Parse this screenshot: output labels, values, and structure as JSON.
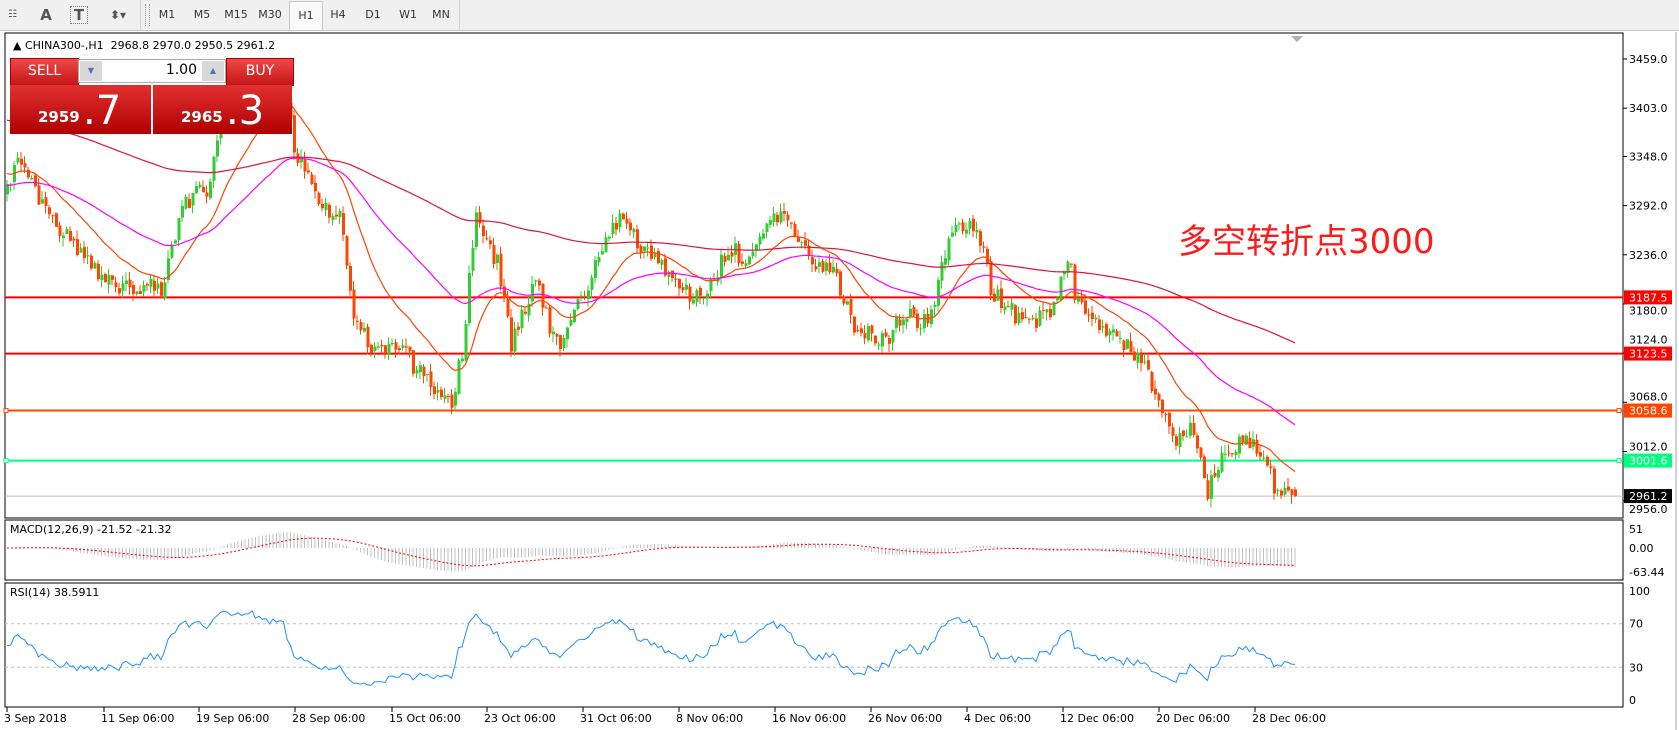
{
  "toolbar": {
    "icons": [
      "grid-f-icon",
      "text-a-icon",
      "text-box-icon",
      "arrows-icon"
    ],
    "timeframes": [
      "M1",
      "M5",
      "M15",
      "M30",
      "H1",
      "H4",
      "D1",
      "W1",
      "MN"
    ],
    "selected_timeframe": "H1"
  },
  "chart": {
    "symbol_line": "CHINA300-,H1  2968.8 2970.0 2950.5 2961.2",
    "trade_panel": {
      "sell_label": "SELL",
      "buy_label": "BUY",
      "lot": "1.00",
      "sell_price_main": "2959",
      "sell_price_frac": ".7",
      "buy_price_main": "2965",
      "buy_price_frac": ".3"
    },
    "annotation": "多空转折点3000",
    "colors": {
      "bull": "#32cd32",
      "bear": "#ff4500",
      "ma_fast": "#ff4500",
      "ma_mid": "#ff00ff",
      "ma_slow": "#dc143c"
    }
  },
  "chart_data": {
    "type": "candlestick",
    "price_axis": {
      "ticks": [
        "3459.0",
        "3403.0",
        "3348.0",
        "3292.0",
        "3236.0",
        "3180.0",
        "3124.0",
        "3068.0",
        "3012.0",
        "2956.0"
      ],
      "range": [
        2948,
        3480
      ]
    },
    "levels": [
      {
        "price": "3187.5",
        "color": "#ff0000"
      },
      {
        "price": "3123.5",
        "color": "#ff0000"
      },
      {
        "price": "3058.6",
        "color": "#ff4500"
      },
      {
        "price": "3001.6",
        "color": "#00ff7f"
      },
      {
        "price": "2961.2",
        "color": "#000000",
        "current": true
      }
    ],
    "date_ticks": [
      {
        "label": "3 Sep 2018",
        "t": "2018-09-03"
      },
      {
        "label": "11 Sep 06:00",
        "t": "2018-09-11"
      },
      {
        "label": "19 Sep 06:00",
        "t": "2018-09-19"
      },
      {
        "label": "28 Sep 06:00",
        "t": "2018-09-28"
      },
      {
        "label": "15 Oct 06:00",
        "t": "2018-10-15"
      },
      {
        "label": "23 Oct 06:00",
        "t": "2018-10-23"
      },
      {
        "label": "31 Oct 06:00",
        "t": "2018-10-31"
      },
      {
        "label": "8 Nov 06:00",
        "t": "2018-11-08"
      },
      {
        "label": "16 Nov 06:00",
        "t": "2018-11-16"
      },
      {
        "label": "26 Nov 06:00",
        "t": "2018-11-26"
      },
      {
        "label": "4 Dec 06:00",
        "t": "2018-12-04"
      },
      {
        "label": "12 Dec 06:00",
        "t": "2018-12-12"
      },
      {
        "label": "20 Dec 06:00",
        "t": "2018-12-20"
      },
      {
        "label": "28 Dec 06:00",
        "t": "2018-12-28"
      }
    ],
    "closes": [
      {
        "t": "2018-09-03",
        "c": 3306
      },
      {
        "t": "2018-09-04",
        "c": 3343
      },
      {
        "t": "2018-09-07",
        "c": 3270
      },
      {
        "t": "2018-09-11",
        "c": 3203
      },
      {
        "t": "2018-09-16",
        "c": 3197
      },
      {
        "t": "2018-09-17T12:00",
        "c": 3294
      },
      {
        "t": "2018-09-20",
        "c": 3313
      },
      {
        "t": "2018-09-21",
        "c": 3392
      },
      {
        "t": "2018-09-24",
        "c": 3428
      },
      {
        "t": "2018-09-27",
        "c": 3441
      },
      {
        "t": "2018-09-28",
        "c": 3355
      },
      {
        "t": "2018-10-02",
        "c": 3294
      },
      {
        "t": "2018-10-06",
        "c": 3282
      },
      {
        "t": "2018-10-08",
        "c": 3172
      },
      {
        "t": "2018-10-11",
        "c": 3136
      },
      {
        "t": "2018-10-16",
        "c": 3123
      },
      {
        "t": "2018-10-20",
        "c": 3062
      },
      {
        "t": "2018-10-21",
        "c": 3136
      },
      {
        "t": "2018-10-22",
        "c": 3282
      },
      {
        "t": "2018-10-24",
        "c": 3221
      },
      {
        "t": "2018-10-25",
        "c": 3136
      },
      {
        "t": "2018-10-27",
        "c": 3209
      },
      {
        "t": "2018-10-29",
        "c": 3123
      },
      {
        "t": "2018-10-30",
        "c": 3160
      },
      {
        "t": "2018-11-01",
        "c": 3221
      },
      {
        "t": "2018-11-03",
        "c": 3282
      },
      {
        "t": "2018-11-05",
        "c": 3245
      },
      {
        "t": "2018-11-08",
        "c": 3197
      },
      {
        "t": "2018-11-10",
        "c": 3184
      },
      {
        "t": "2018-11-12",
        "c": 3245
      },
      {
        "t": "2018-11-14",
        "c": 3227
      },
      {
        "t": "2018-11-16",
        "c": 3282
      },
      {
        "t": "2018-11-17",
        "c": 3282
      },
      {
        "t": "2018-11-20",
        "c": 3221
      },
      {
        "t": "2018-11-22",
        "c": 3221
      },
      {
        "t": "2018-11-24",
        "c": 3160
      },
      {
        "t": "2018-11-27",
        "c": 3136
      },
      {
        "t": "2018-11-29",
        "c": 3172
      },
      {
        "t": "2018-11-30",
        "c": 3148
      },
      {
        "t": "2018-12-01",
        "c": 3172
      },
      {
        "t": "2018-12-03",
        "c": 3276
      },
      {
        "t": "2018-12-05",
        "c": 3258
      },
      {
        "t": "2018-12-06",
        "c": 3197
      },
      {
        "t": "2018-12-09",
        "c": 3154
      },
      {
        "t": "2018-12-11",
        "c": 3172
      },
      {
        "t": "2018-12-12T12:00",
        "c": 3239
      },
      {
        "t": "2018-12-13",
        "c": 3184
      },
      {
        "t": "2018-12-15",
        "c": 3160
      },
      {
        "t": "2018-12-18",
        "c": 3123
      },
      {
        "t": "2018-12-20",
        "c": 3075
      },
      {
        "t": "2018-12-21",
        "c": 3026
      },
      {
        "t": "2018-12-23",
        "c": 3038
      },
      {
        "t": "2018-12-24",
        "c": 2965
      },
      {
        "t": "2018-12-25T12:00",
        "c": 3014
      },
      {
        "t": "2018-12-27",
        "c": 3026
      },
      {
        "t": "2018-12-29",
        "c": 3001
      },
      {
        "t": "2018-12-30",
        "c": 2959
      },
      {
        "t": "2018-12-31T12:00",
        "c": 2961.2
      }
    ],
    "last_bar": {
      "open": "2968.8",
      "high": "2970.0",
      "low": "2950.5",
      "close": "2961.2"
    }
  },
  "macd": {
    "label": "MACD(12,26,9) -21.52 -21.32",
    "ticks": [
      "51",
      "0.00",
      "-63.44"
    ]
  },
  "rsi": {
    "label": "RSI(14) 38.5911",
    "ticks": [
      "100",
      "70",
      "30",
      "0"
    ]
  }
}
